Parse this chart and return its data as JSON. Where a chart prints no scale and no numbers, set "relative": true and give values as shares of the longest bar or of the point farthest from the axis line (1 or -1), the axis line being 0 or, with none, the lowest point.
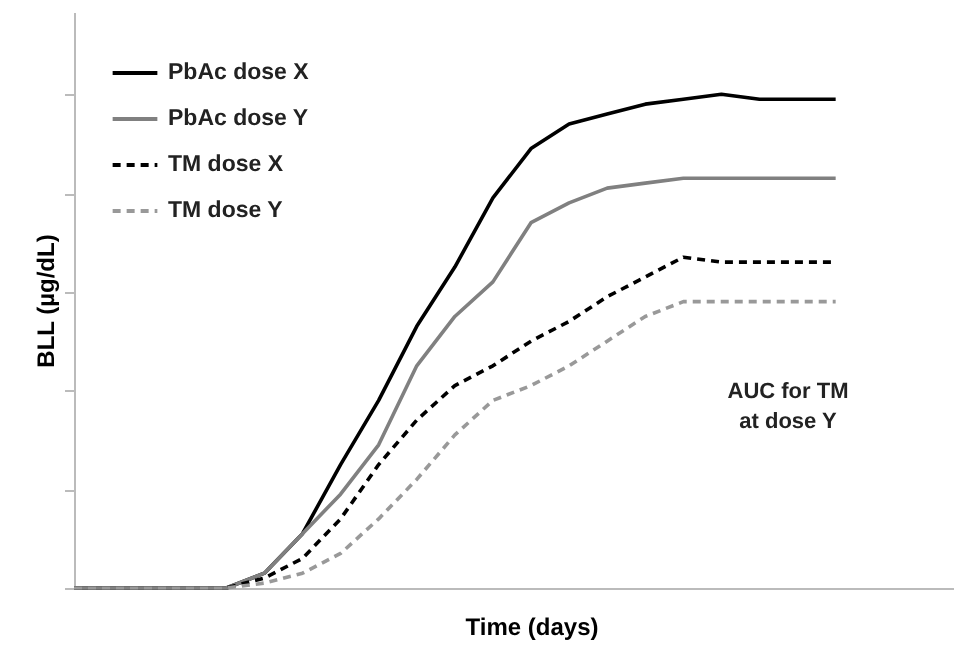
{
  "chart_data": {
    "type": "line",
    "relative": true,
    "xlabel": "Time (days)",
    "ylabel": "BLL (µg/dL)",
    "legend": "top left",
    "grid": false,
    "marker": "none",
    "categories": [
      null,
      null,
      null,
      null,
      null,
      null,
      null,
      null,
      null,
      null,
      null,
      null,
      null,
      null,
      null,
      null,
      null,
      null,
      null,
      null,
      null,
      null,
      null,
      null,
      null
    ],
    "series": [
      {
        "name": "PbAc dose X",
        "color": "#000000",
        "line_style": "solid",
        "values": [
          0,
          0,
          0,
          0,
          0,
          0.03,
          0.11,
          0.25,
          0.38,
          0.53,
          0.65,
          0.79,
          0.89,
          0.94,
          0.96,
          0.98,
          0.99,
          1,
          0.99,
          0.99,
          0.99,
          null,
          null,
          null,
          null
        ]
      },
      {
        "name": "PbAc dose Y",
        "color": "#808080",
        "line_style": "solid",
        "values": [
          0,
          0,
          0,
          0,
          0,
          0.03,
          0.11,
          0.19,
          0.29,
          0.45,
          0.55,
          0.62,
          0.74,
          0.78,
          0.81,
          0.82,
          0.83,
          0.83,
          0.83,
          0.83,
          0.83,
          null,
          null,
          null,
          null
        ]
      },
      {
        "name": "TM dose X",
        "color": "#000000",
        "line_style": "dashed",
        "values": [
          0,
          0,
          0,
          0,
          0,
          0.02,
          0.06,
          0.14,
          0.25,
          0.34,
          0.41,
          0.45,
          0.5,
          0.54,
          0.59,
          0.63,
          0.67,
          0.66,
          0.66,
          0.66,
          0.66,
          null,
          null,
          null,
          null
        ]
      },
      {
        "name": "TM dose Y",
        "color": "#999999",
        "line_style": "dashed",
        "values": [
          0,
          0,
          0,
          0,
          0,
          0.01,
          0.03,
          0.07,
          0.14,
          0.22,
          0.31,
          0.38,
          0.41,
          0.45,
          0.5,
          0.55,
          0.58,
          0.58,
          0.58,
          0.58,
          0.58,
          null,
          null,
          null,
          null
        ]
      }
    ],
    "annotations": [
      "AUC  for TM\nat  dose Y"
    ]
  }
}
